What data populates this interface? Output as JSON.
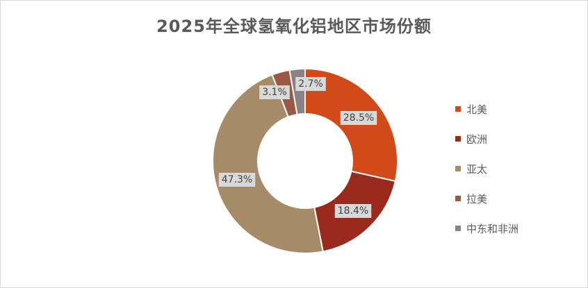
{
  "chart_data": {
    "type": "pie",
    "title": "2025年全球氢氧化铝地区市场份额",
    "legend_position": "right",
    "donut": true,
    "categories": [
      "北美",
      "欧洲",
      "亚太",
      "拉美",
      "中东和非洲"
    ],
    "values": [
      28.5,
      18.4,
      47.3,
      3.1,
      2.7
    ],
    "labels": [
      "28.5%",
      "18.4%",
      "47.3%",
      "3.1%",
      "2.7%"
    ],
    "colors": [
      "#d24a1a",
      "#9b2a1e",
      "#a58b68",
      "#9a5847",
      "#8c8185"
    ]
  }
}
